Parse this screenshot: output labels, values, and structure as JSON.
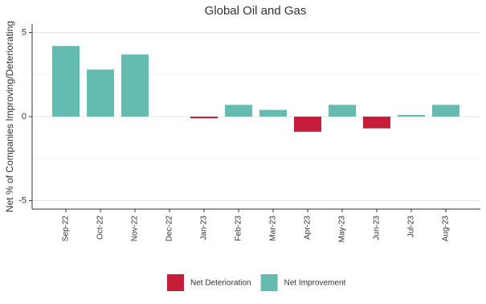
{
  "chart_data": {
    "type": "bar",
    "title": "Global Oil and Gas",
    "y_label": "Net % of Companies Improving/Deteriorating",
    "categories": [
      "Sep-22",
      "Oct-22",
      "Nov-22",
      "Dec-22",
      "Jan-23",
      "Feb-23",
      "Mar-23",
      "Apr-23",
      "May-23",
      "Jun-23",
      "Jul-23",
      "Aug-23"
    ],
    "series": [
      {
        "name": "Net Deterioration",
        "color": "#c41e3a",
        "values": [
          null,
          null,
          null,
          null,
          -0.1,
          null,
          null,
          -0.9,
          null,
          -0.7,
          null,
          null
        ]
      },
      {
        "name": "Net Improvement",
        "color": "#66bbb0",
        "values": [
          4.2,
          2.8,
          3.7,
          0,
          null,
          0.7,
          0.4,
          null,
          0.7,
          null,
          0.1,
          0.7
        ]
      }
    ],
    "ylim": [
      -5.5,
      5.5
    ],
    "yticks": [
      -5,
      0,
      5
    ],
    "grid": true,
    "legend": "bottom"
  }
}
